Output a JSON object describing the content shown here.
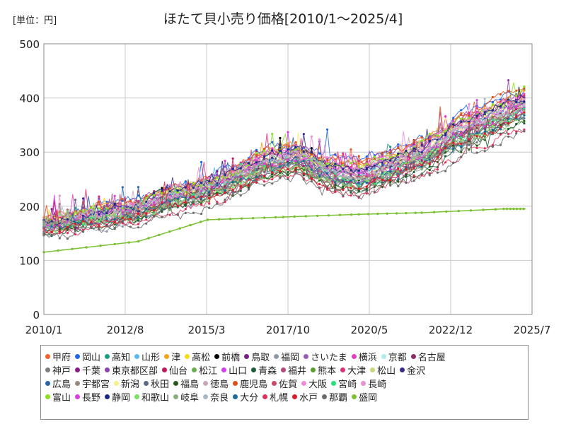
{
  "chart_data": {
    "type": "line",
    "title": "ほたて貝小売り価格[2010/1～2025/4]",
    "unit_label": "[単位：円]",
    "ylim": [
      0,
      500
    ],
    "yticks": [
      0,
      100,
      200,
      300,
      400,
      500
    ],
    "xticks": [
      "2010/1",
      "2012/8",
      "2015/3",
      "2017/10",
      "2020/5",
      "2022/12",
      "2025/7"
    ],
    "grid": true,
    "legend_position": "bottom",
    "representative_trend": {
      "x": [
        2010.0,
        2011.0,
        2012.0,
        2013.0,
        2014.0,
        2015.0,
        2016.0,
        2017.0,
        2018.0,
        2019.0,
        2020.0,
        2021.0,
        2022.0,
        2023.0,
        2024.0,
        2025.25
      ],
      "y": [
        165,
        175,
        185,
        195,
        215,
        230,
        250,
        280,
        290,
        265,
        255,
        275,
        295,
        330,
        355,
        390
      ]
    },
    "series": [
      {
        "name": "甲府",
        "color": "#f0642c",
        "level": 20
      },
      {
        "name": "岡山",
        "color": "#1f66e8",
        "level": 25
      },
      {
        "name": "高知",
        "color": "#1a9f7e",
        "level": 5
      },
      {
        "name": "山形",
        "color": "#5bb8f0",
        "level": 0
      },
      {
        "name": "津",
        "color": "#f5a11a",
        "level": 15
      },
      {
        "name": "高松",
        "color": "#f5dc12",
        "level": 10
      },
      {
        "name": "前橋",
        "color": "#000000",
        "level": -5
      },
      {
        "name": "鳥取",
        "color": "#7a1f8a",
        "level": -10
      },
      {
        "name": "福岡",
        "color": "#8a9aa8",
        "level": -20
      },
      {
        "name": "さいたま",
        "color": "#9b59b6",
        "level": 8
      },
      {
        "name": "横浜",
        "color": "#e040c8",
        "level": 12
      },
      {
        "name": "京都",
        "color": "#b0ecef",
        "level": 3
      },
      {
        "name": "名古屋",
        "color": "#8e2b66",
        "level": -3
      },
      {
        "name": "神戸",
        "color": "#7f7f7f",
        "level": -15
      },
      {
        "name": "千葉",
        "color": "#8b1a8b",
        "level": -8
      },
      {
        "name": "東京都区部",
        "color": "#8e44ad",
        "level": 18
      },
      {
        "name": "仙台",
        "color": "#c2185b",
        "level": -12
      },
      {
        "name": "松江",
        "color": "#6ab04c",
        "level": -18
      },
      {
        "name": "山口",
        "color": "#d63cf0",
        "level": 6
      },
      {
        "name": "青森",
        "color": "#1e5c3a",
        "level": -25
      },
      {
        "name": "福井",
        "color": "#b5477a",
        "level": 2
      },
      {
        "name": "熊本",
        "color": "#5aa02c",
        "level": -6
      },
      {
        "name": "大津",
        "color": "#e0307a",
        "level": 14
      },
      {
        "name": "松山",
        "color": "#cbd67a",
        "level": -2
      },
      {
        "name": "金沢",
        "color": "#3a2a8a",
        "level": 9
      },
      {
        "name": "広島",
        "color": "#2a64a8",
        "level": 4
      },
      {
        "name": "宇都宮",
        "color": "#9a8a7a",
        "level": -9
      },
      {
        "name": "新潟",
        "color": "#f5f08a",
        "level": 7
      },
      {
        "name": "秋田",
        "color": "#5a6a8a",
        "level": -14
      },
      {
        "name": "福島",
        "color": "#2a5a1a",
        "level": -22
      },
      {
        "name": "徳島",
        "color": "#c8a8b8",
        "level": 1
      },
      {
        "name": "鹿児島",
        "color": "#e0501a",
        "level": 22
      },
      {
        "name": "佐賀",
        "color": "#c84a6a",
        "level": -4
      },
      {
        "name": "大阪",
        "color": "#f08ad8",
        "level": 11
      },
      {
        "name": "宮崎",
        "color": "#2ae07a",
        "level": -7
      },
      {
        "name": "長崎",
        "color": "#e890d0",
        "level": 5
      },
      {
        "name": "富山",
        "color": "#8ae020",
        "level": 16
      },
      {
        "name": "長野",
        "color": "#d640e0",
        "level": -1
      },
      {
        "name": "静岡",
        "color": "#1a2a8a",
        "level": 13
      },
      {
        "name": "和歌山",
        "color": "#7ae060",
        "level": -11
      },
      {
        "name": "岐阜",
        "color": "#8ab07a",
        "level": -16
      },
      {
        "name": "奈良",
        "color": "#a8b8c8",
        "level": 3
      },
      {
        "name": "大分",
        "color": "#1a6a9a",
        "level": -13
      },
      {
        "name": "札幌",
        "color": "#e0305a",
        "level": -30
      },
      {
        "name": "水戸",
        "color": "#e01a2a",
        "level": -19
      },
      {
        "name": "那覇",
        "color": "#6a6a6a",
        "level": -35
      },
      {
        "name": "盛岡",
        "color": "#7ac030",
        "level": 0
      }
    ],
    "flat_series": {
      "name": "盛岡",
      "x": [
        2010.0,
        2013.0,
        2015.2,
        2017.6,
        2020.0,
        2022.0,
        2024.6,
        2025.3
      ],
      "y": [
        115,
        135,
        175,
        180,
        185,
        188,
        195,
        195
      ]
    }
  }
}
